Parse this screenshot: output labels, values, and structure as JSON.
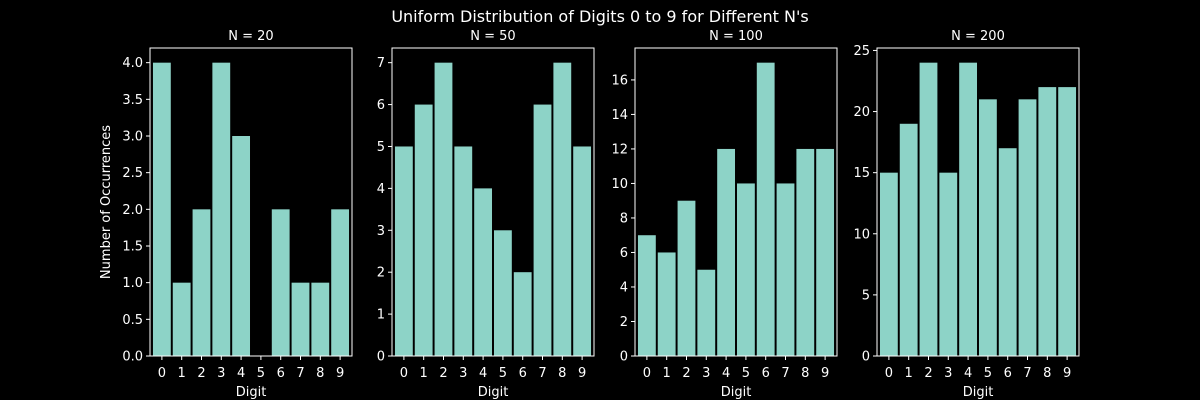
{
  "figure": {
    "title": "Uniform Distribution of Digits 0 to 9 for Different N's",
    "background": "#000000",
    "foreground": "#ffffff",
    "bar_color": "#8dd3c7"
  },
  "chart_data": [
    {
      "type": "bar",
      "title": "N = 20",
      "xlabel": "Digit",
      "ylabel": "Number of Occurrences",
      "categories": [
        "0",
        "1",
        "2",
        "3",
        "4",
        "5",
        "6",
        "7",
        "8",
        "9"
      ],
      "values": [
        4,
        1,
        2,
        4,
        3,
        0,
        2,
        1,
        1,
        2
      ],
      "ylim": [
        0,
        4.2
      ],
      "yticks": [
        "0.0",
        "0.5",
        "1.0",
        "1.5",
        "2.0",
        "2.5",
        "3.0",
        "3.5",
        "4.0"
      ],
      "grid": false
    },
    {
      "type": "bar",
      "title": "N = 50",
      "xlabel": "Digit",
      "ylabel": "",
      "categories": [
        "0",
        "1",
        "2",
        "3",
        "4",
        "5",
        "6",
        "7",
        "8",
        "9"
      ],
      "values": [
        5,
        6,
        7,
        5,
        4,
        3,
        2,
        6,
        7,
        5
      ],
      "ylim": [
        0,
        7.35
      ],
      "yticks": [
        "0",
        "1",
        "2",
        "3",
        "4",
        "5",
        "6",
        "7"
      ],
      "grid": false
    },
    {
      "type": "bar",
      "title": "N = 100",
      "xlabel": "Digit",
      "ylabel": "",
      "categories": [
        "0",
        "1",
        "2",
        "3",
        "4",
        "5",
        "6",
        "7",
        "8",
        "9"
      ],
      "values": [
        7,
        6,
        9,
        5,
        12,
        10,
        17,
        10,
        12,
        12
      ],
      "ylim": [
        0,
        17.85
      ],
      "yticks": [
        "0",
        "2",
        "4",
        "6",
        "8",
        "10",
        "12",
        "14",
        "16"
      ],
      "grid": false
    },
    {
      "type": "bar",
      "title": "N = 200",
      "xlabel": "Digit",
      "ylabel": "",
      "categories": [
        "0",
        "1",
        "2",
        "3",
        "4",
        "5",
        "6",
        "7",
        "8",
        "9"
      ],
      "values": [
        15,
        19,
        24,
        15,
        24,
        21,
        17,
        21,
        22,
        22
      ],
      "ylim": [
        0,
        25.2
      ],
      "yticks": [
        "0",
        "5",
        "10",
        "15",
        "20",
        "25"
      ],
      "grid": false
    }
  ]
}
